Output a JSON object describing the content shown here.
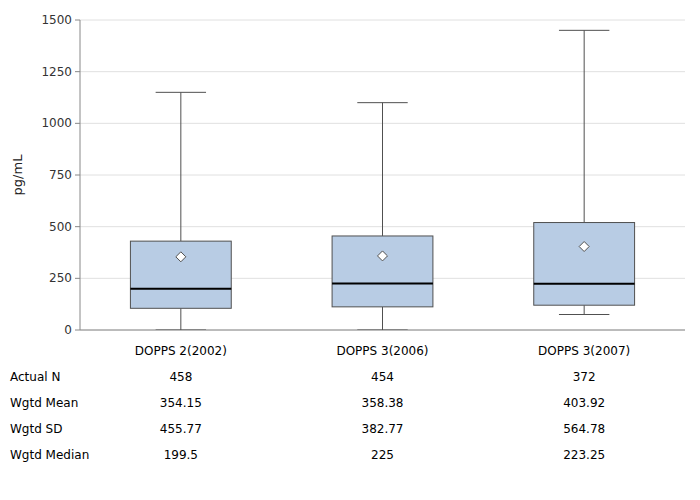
{
  "chart_data": {
    "type": "box",
    "ylabel": "pg/mL",
    "categories": [
      "DOPPS 2(2002)",
      "DOPPS 3(2006)",
      "DOPPS 3(2007)"
    ],
    "boxes": [
      {
        "q1": 105,
        "median": 199.5,
        "q3": 430,
        "whisker_low": 0,
        "whisker_high": 1150,
        "mean": 354.15
      },
      {
        "q1": 112,
        "median": 225,
        "q3": 455,
        "whisker_low": 0,
        "whisker_high": 1100,
        "mean": 358.38
      },
      {
        "q1": 120,
        "median": 223.25,
        "q3": 520,
        "whisker_low": 75,
        "whisker_high": 1450,
        "mean": 403.92
      }
    ],
    "table": [
      {
        "label": "Actual N",
        "values": [
          458,
          454,
          372
        ]
      },
      {
        "label": "Wgtd Mean",
        "values": [
          354.15,
          358.38,
          403.92
        ]
      },
      {
        "label": "Wgtd SD",
        "values": [
          455.77,
          382.77,
          564.78
        ]
      },
      {
        "label": "Wgtd Median",
        "values": [
          199.5,
          225,
          223.25
        ]
      }
    ],
    "color": "#b8cce4",
    "ylim": [
      0,
      1500
    ],
    "yticks": [
      0,
      250,
      500,
      750,
      1000,
      1250,
      1500
    ],
    "grid": true
  }
}
